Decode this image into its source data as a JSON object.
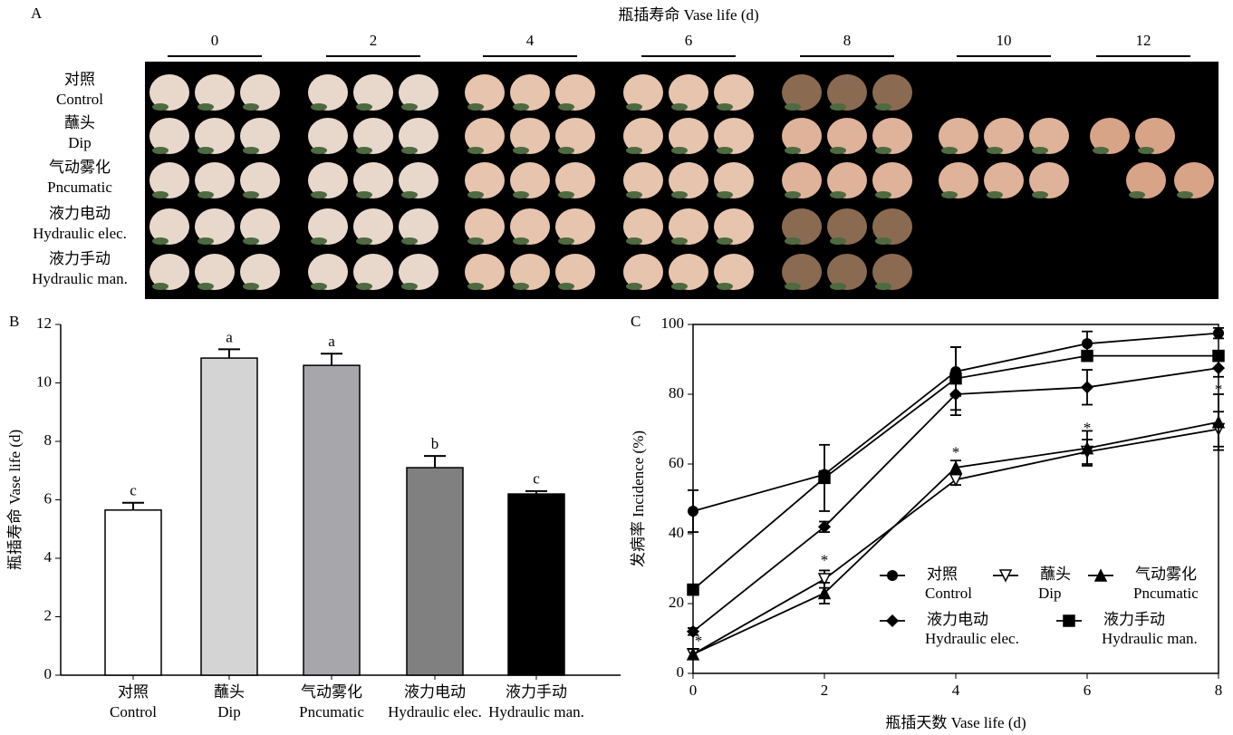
{
  "photo_panel": {
    "label": "A",
    "title": "瓶插寿命 Vase life (d)",
    "days": [
      "0",
      "2",
      "4",
      "6",
      "8",
      "10",
      "12"
    ],
    "rows": [
      [
        "对照",
        "Control"
      ],
      [
        "蘸头",
        "Dip"
      ],
      [
        "气动雾化",
        "Pncumatic"
      ],
      [
        "液力电动",
        "Hydraulic elec."
      ],
      [
        "液力手动",
        "Hydraulic man."
      ]
    ]
  },
  "chart_data": [
    {
      "type": "bar",
      "label": "B",
      "ylabel": "瓶插寿命 Vase life (d)",
      "categories": [
        [
          "对照",
          "Control"
        ],
        [
          "蘸头",
          "Dip"
        ],
        [
          "气动雾化",
          "Pncumatic"
        ],
        [
          "液力电动",
          "Hydraulic elec."
        ],
        [
          "液力手动",
          "Hydraulic man."
        ]
      ],
      "values": [
        5.65,
        10.85,
        10.6,
        7.1,
        6.2
      ],
      "errors": [
        0.25,
        0.3,
        0.4,
        0.4,
        0.1
      ],
      "annotations": [
        "c",
        "a",
        "a",
        "b",
        "c"
      ],
      "colors": [
        "#ffffff",
        "#d4d4d4",
        "#a6a6ab",
        "#808080",
        "#000000"
      ],
      "ylim": [
        0,
        12
      ],
      "yticks": [
        0,
        2,
        4,
        6,
        8,
        10,
        12
      ]
    },
    {
      "type": "line",
      "label": "C",
      "xlabel": "瓶插天数 Vase life (d)",
      "ylabel": "发病率 Incidence (%)",
      "x": [
        0,
        2,
        4,
        6,
        8
      ],
      "xlim": [
        0,
        8
      ],
      "xticks": [
        0,
        2,
        4,
        6,
        8
      ],
      "ylim": [
        0,
        100
      ],
      "yticks": [
        0,
        20,
        40,
        60,
        80,
        100
      ],
      "series": [
        {
          "name": "对照",
          "name_en": "Control",
          "marker": "circle",
          "color": "#000000",
          "values": [
            46.5,
            57,
            86.5,
            94.5,
            97.5
          ],
          "errors": [
            6,
            1,
            7,
            3.5,
            1.5
          ]
        },
        {
          "name": "蘸头",
          "name_en": "Dip",
          "marker": "triangle-down-open",
          "color": "#000000",
          "values": [
            5.5,
            27,
            55.5,
            63.5,
            70
          ],
          "errors": [
            1.5,
            2.5,
            1.5,
            3.5,
            5
          ]
        },
        {
          "name": "气动雾化",
          "name_en": "Pncumatic",
          "marker": "triangle-up",
          "color": "#000000",
          "values": [
            5.5,
            23,
            59,
            64.5,
            72
          ],
          "errors": [
            1.5,
            3,
            2,
            5,
            8
          ]
        },
        {
          "name": "液力电动",
          "name_en": "Hydraulic elec.",
          "marker": "diamond",
          "color": "#000000",
          "values": [
            12,
            42,
            80,
            82,
            87.5
          ],
          "errors": [
            1,
            1.5,
            6,
            5,
            2.5
          ]
        },
        {
          "name": "液力手动",
          "name_en": "Hydraulic man.",
          "marker": "square",
          "color": "#000000",
          "values": [
            24,
            56,
            84.5,
            91,
            91
          ],
          "errors": [
            1.5,
            9.5,
            9,
            1.5,
            1.5
          ]
        }
      ],
      "annotations": [
        {
          "x": 0,
          "y": 9,
          "text": "*"
        },
        {
          "x": 2,
          "y": 32,
          "text": "*"
        },
        {
          "x": 4,
          "y": 63,
          "text": "*"
        },
        {
          "x": 6,
          "y": 70,
          "text": "*"
        },
        {
          "x": 8,
          "y": 81,
          "text": "*"
        }
      ]
    }
  ]
}
